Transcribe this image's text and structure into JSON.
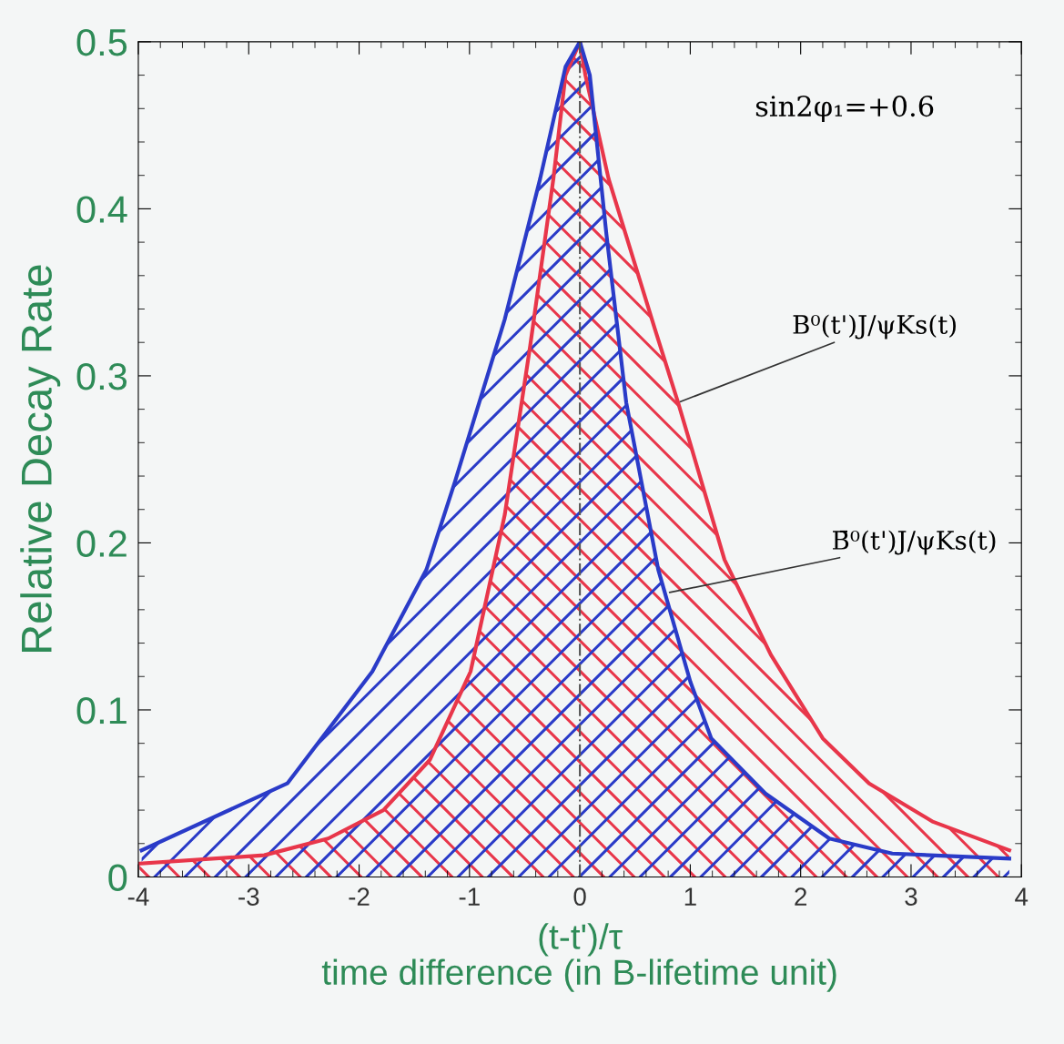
{
  "chart_data": {
    "type": "area",
    "ylabel": "Relative Decay Rate",
    "xlabel": "(t-t')/τ\ntime difference (in B-lifetime unit)",
    "xlim": [
      -4,
      4
    ],
    "xticks": [
      -4,
      -3,
      -2,
      -1,
      0,
      1,
      2,
      3,
      4
    ],
    "ylim": [
      0,
      0.5
    ],
    "yticks": [
      0,
      0.1,
      0.2,
      0.3,
      0.4,
      0.5
    ],
    "grid": false,
    "legend": false,
    "series": [
      {
        "color": "#e8364a",
        "x": [
          -3.99,
          -2.86,
          -2.28,
          -1.78,
          -1.36,
          -0.99,
          -0.68,
          -0.45,
          -0.24,
          -0.13,
          0,
          0.05,
          0.26,
          0.68,
          0.89,
          1.31,
          1.73,
          2.2,
          2.62,
          3.2,
          3.89
        ],
        "values": [
          0.008,
          0.013,
          0.023,
          0.04,
          0.07,
          0.123,
          0.217,
          0.318,
          0.418,
          0.48,
          0.5,
          0.48,
          0.418,
          0.328,
          0.284,
          0.19,
          0.133,
          0.083,
          0.056,
          0.033,
          0.016
        ]
      },
      {
        "color": "#2a3bc8",
        "x": [
          -3.97,
          -2.65,
          -1.88,
          -1.39,
          -1.13,
          -0.68,
          -0.36,
          -0.13,
          0,
          0.09,
          0.24,
          0.42,
          0.71,
          1.0,
          1.19,
          1.68,
          2.26,
          2.83,
          3.89
        ],
        "values": [
          0.016,
          0.056,
          0.123,
          0.184,
          0.237,
          0.334,
          0.418,
          0.485,
          0.5,
          0.48,
          0.385,
          0.284,
          0.184,
          0.117,
          0.083,
          0.05,
          0.023,
          0.014,
          0.011
        ]
      }
    ],
    "ref_lines": [
      {
        "axis": "x",
        "value": 0,
        "color": "#555555",
        "line_style": "dashdot"
      }
    ],
    "annotations": [
      "sin2φ₁=+0.6",
      {
        "text": "B⁰(t')J/ψKs(t)",
        "x": 0.89,
        "y": 0.284
      },
      {
        "text": "B̄⁰(t')J/ψKs(t)",
        "x": 0.79,
        "y": 0.17
      }
    ]
  }
}
